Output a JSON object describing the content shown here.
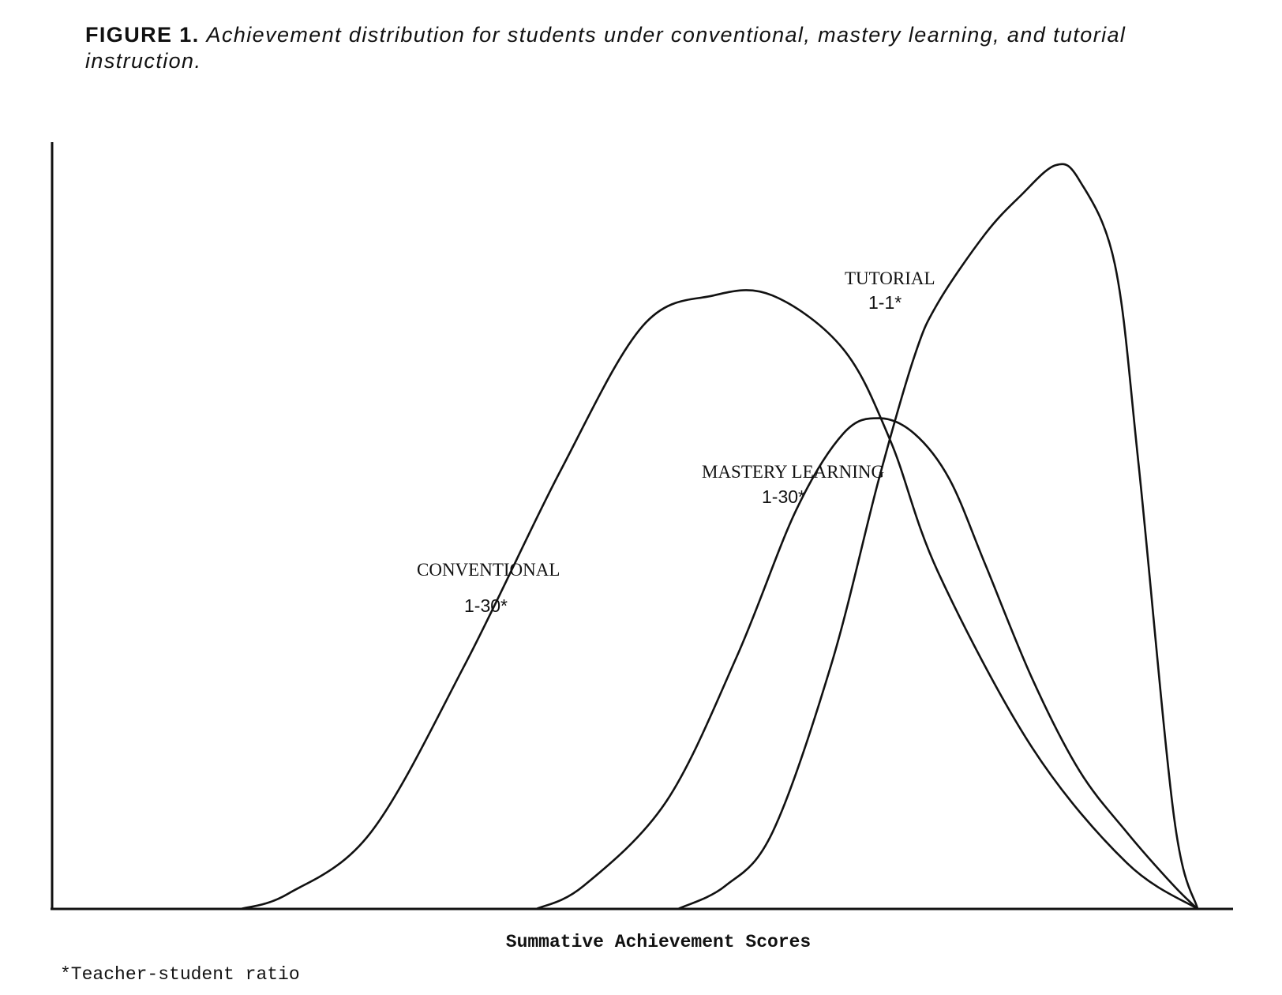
{
  "caption": {
    "label": "FIGURE 1.",
    "text": "Achievement distribution for students under conventional, mastery learning, and tutorial instruction."
  },
  "chart_data": {
    "type": "line",
    "title": "",
    "xlabel": "Summative Achievement Scores",
    "ylabel": "",
    "xlim": [
      0,
      100
    ],
    "ylim": [
      0,
      100
    ],
    "grid": false,
    "footnote": "*Teacher-student ratio",
    "series": [
      {
        "name": "CONVENTIONAL",
        "ratio": "1-30*",
        "x": [
          16,
          20,
          27,
          35,
          43,
          50,
          56,
          61,
          67,
          71,
          75,
          83,
          91,
          97
        ],
        "y": [
          0,
          2,
          10,
          32,
          57,
          76,
          80,
          80,
          73,
          61,
          44,
          21,
          6,
          0
        ]
      },
      {
        "name": "MASTERY LEARNING",
        "ratio": "1-30*",
        "x": [
          41,
          45,
          52,
          58,
          63,
          67,
          70,
          73,
          76,
          79,
          83,
          87,
          91,
          95,
          97
        ],
        "y": [
          0,
          3,
          14,
          33,
          52,
          62,
          64,
          62,
          56,
          45,
          30,
          18,
          10,
          3,
          0
        ]
      },
      {
        "name": "TUTORIAL",
        "ratio": "1-1*",
        "x": [
          53,
          57,
          61,
          66,
          70,
          73,
          75,
          79,
          82,
          85,
          87,
          90,
          92,
          95,
          97
        ],
        "y": [
          0,
          3,
          10,
          32,
          56,
          72,
          79,
          88,
          93,
          97,
          95,
          84,
          58,
          12,
          0
        ]
      }
    ]
  }
}
